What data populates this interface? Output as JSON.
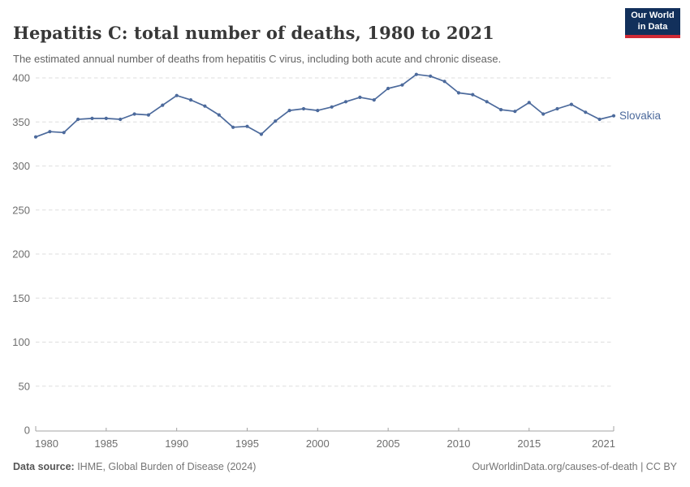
{
  "header": {
    "title": "Hepatitis C: total number of deaths, 1980 to 2021",
    "subtitle": "The estimated annual number of deaths from hepatitis C virus, including both acute and chronic disease."
  },
  "logo": {
    "line1": "Our World",
    "line2": "in Data",
    "bg_color": "#12305b",
    "accent_color": "#d02a35"
  },
  "chart_data": {
    "type": "line",
    "title": "Hepatitis C: total number of deaths, 1980 to 2021",
    "x": [
      1980,
      1981,
      1982,
      1983,
      1984,
      1985,
      1986,
      1987,
      1988,
      1989,
      1990,
      1991,
      1992,
      1993,
      1994,
      1995,
      1996,
      1997,
      1998,
      1999,
      2000,
      2001,
      2002,
      2003,
      2004,
      2005,
      2006,
      2007,
      2008,
      2009,
      2010,
      2011,
      2012,
      2013,
      2014,
      2015,
      2016,
      2017,
      2018,
      2019,
      2020,
      2021
    ],
    "series": [
      {
        "name": "Slovakia",
        "color": "#4C6A9C",
        "values": [
          333,
          339,
          338,
          353,
          354,
          354,
          353,
          359,
          358,
          369,
          380,
          375,
          368,
          358,
          344,
          345,
          336,
          351,
          363,
          365,
          363,
          367,
          373,
          378,
          375,
          388,
          392,
          404,
          402,
          396,
          383,
          381,
          373,
          364,
          362,
          372,
          359,
          365,
          370,
          361,
          353,
          357
        ]
      }
    ],
    "xlabel": "",
    "ylabel": "",
    "xticks": [
      1980,
      1985,
      1990,
      1995,
      2000,
      2005,
      2010,
      2015,
      2021
    ],
    "yticks": [
      0,
      50,
      100,
      150,
      200,
      250,
      300,
      350,
      400
    ],
    "ylim": [
      0,
      400
    ],
    "xlim": [
      1980,
      2021
    ],
    "grid": "horizontal-dashed",
    "legend_position": "end-of-line-label"
  },
  "footer": {
    "source_label": "Data source:",
    "source_text": " IHME, Global Burden of Disease (2024)",
    "link_text": "OurWorldinData.org/causes-of-death | CC BY"
  }
}
